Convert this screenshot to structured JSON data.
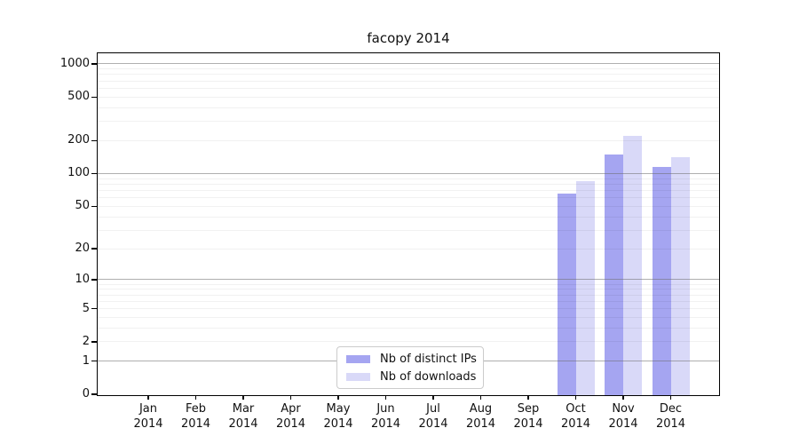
{
  "title": "facopy 2014",
  "chart_data": {
    "type": "bar",
    "title": "facopy 2014",
    "categories": [
      "Jan",
      "Feb",
      "Mar",
      "Apr",
      "May",
      "Jun",
      "Jul",
      "Aug",
      "Sep",
      "Oct",
      "Nov",
      "Dec"
    ],
    "category_year": "2014",
    "series": [
      {
        "name": "Nb of distinct IPs",
        "color": "#a5a5f1",
        "values": [
          0,
          0,
          0,
          0,
          0,
          0,
          0,
          0,
          0,
          65,
          150,
          115
        ]
      },
      {
        "name": "Nb of downloads",
        "color": "#d9d9f8",
        "values": [
          0,
          0,
          0,
          0,
          0,
          0,
          0,
          0,
          0,
          85,
          220,
          140
        ]
      }
    ],
    "yscale": "log10(1+v)",
    "yticks": [
      0,
      1,
      2,
      5,
      10,
      20,
      50,
      100,
      200,
      500,
      1000
    ],
    "ylim": [
      0,
      1270
    ],
    "grid": "on",
    "grid_over_bars": true,
    "major_grid_values": [
      1,
      10,
      100,
      1000
    ],
    "legend_position": "bottom-center-inside",
    "colors": {
      "frame": "#000000",
      "major_grid": "#6e6e6e",
      "minor_grid": "#e9e9e9",
      "background": "#ffffff"
    }
  }
}
